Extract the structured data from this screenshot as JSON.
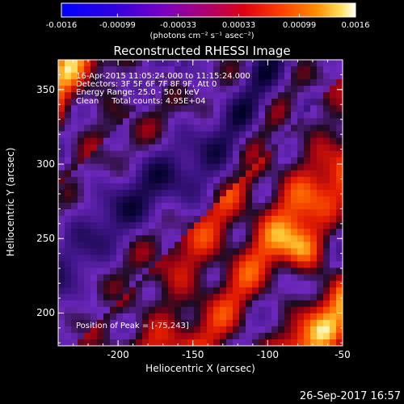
{
  "chart_data": {
    "type": "heatmap",
    "title": "Reconstructed RHESSI Image",
    "xlabel": "Heliocentric X (arcsec)",
    "ylabel": "Heliocentric Y (arcsec)",
    "xlim": [
      -240,
      -50
    ],
    "ylim": [
      178,
      370
    ],
    "x_ticks": [
      "-200",
      "-150",
      "-100",
      "-50"
    ],
    "x_tick_values": [
      -200,
      -150,
      -100,
      -50
    ],
    "y_ticks": [
      "200",
      "250",
      "300",
      "350"
    ],
    "y_tick_values": [
      200,
      250,
      300,
      350
    ],
    "colorbar": {
      "min": -0.0016,
      "max": 0.0016,
      "tick_labels": [
        "-0.0016",
        "-0.00099",
        "-0.00033",
        "0.00033",
        "0.00099",
        "0.0016"
      ],
      "tick_values": [
        -0.0016,
        -0.00099,
        -0.00033,
        0.00033,
        0.00099,
        0.0016
      ],
      "units": "(photons cm⁻² s⁻¹ asec⁻²)"
    },
    "annotations": [
      "16-Apr-2015 11:05:24.000 to 11:15:24.000",
      "Detectors: 3F 5F 6F 7F 8F 9F, Att 0",
      "Energy Range: 25.0 - 50.0 keV",
      "Clean     Total counts: 4.95E+04"
    ],
    "peak_label": "Position of Peak = [-75,243]",
    "peak": [
      -75,
      243
    ]
  },
  "footer": {
    "timestamp": "26-Sep-2017 16:57"
  }
}
